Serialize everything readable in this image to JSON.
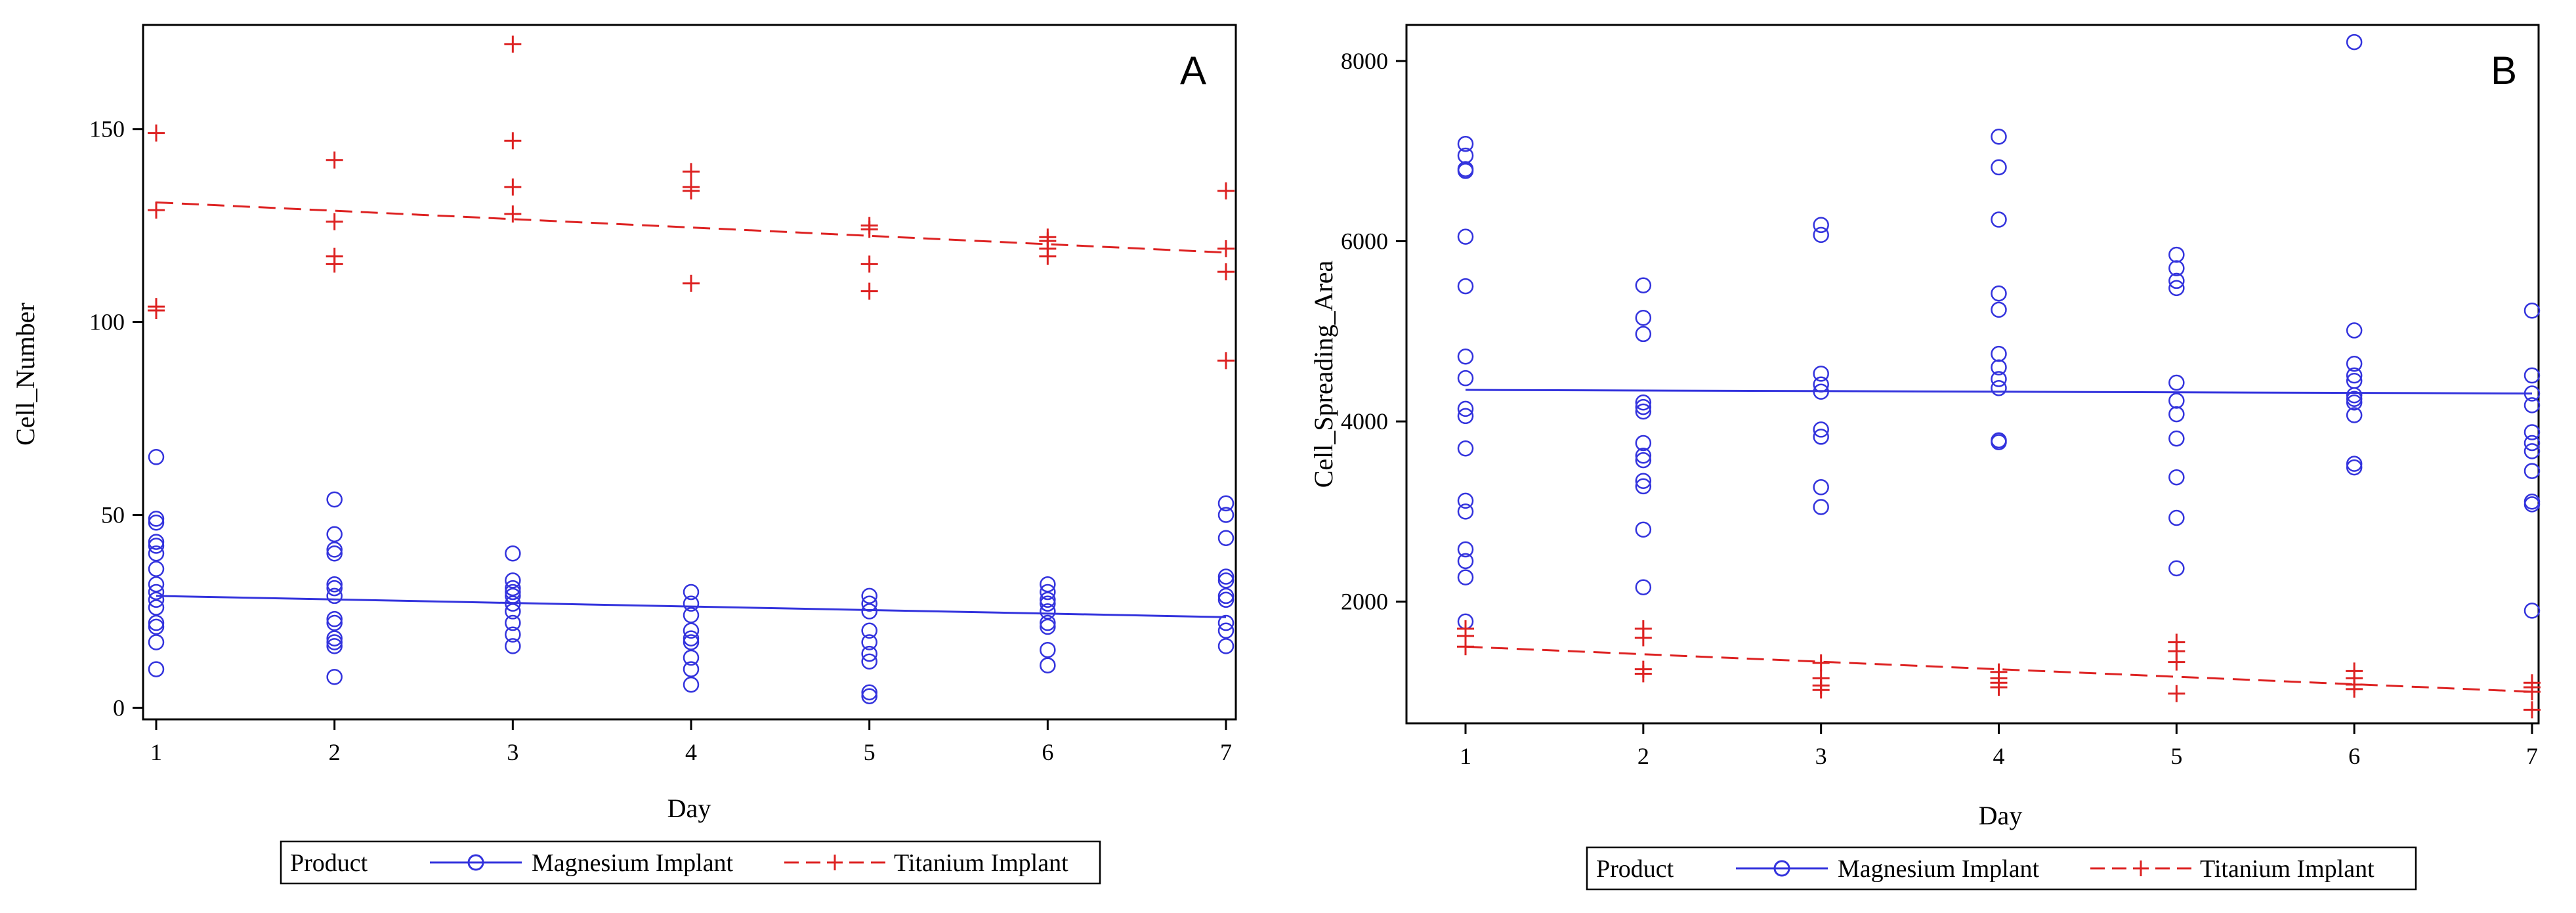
{
  "chart_data": [
    {
      "panel": "A",
      "type": "scatter",
      "xlabel": "Day",
      "ylabel": "Cell_Number",
      "xlim": [
        1,
        7
      ],
      "ylim": [
        -3,
        177
      ],
      "xticks": [
        1,
        2,
        3,
        4,
        5,
        6,
        7
      ],
      "yticks": [
        0,
        50,
        100,
        150
      ],
      "grid": false,
      "legend": {
        "title": "Product",
        "placement": "bottom",
        "entries": [
          "Magnesium Implant",
          "Titanium Implant"
        ]
      },
      "series": [
        {
          "name": "Magnesium Implant",
          "color": "#3333dd",
          "marker": "circle",
          "fit_line": "solid",
          "fit": [
            [
              1,
              29
            ],
            [
              7,
              23.5
            ]
          ],
          "points": [
            [
              1,
              65
            ],
            [
              1,
              49
            ],
            [
              1,
              48
            ],
            [
              1,
              43
            ],
            [
              1,
              42
            ],
            [
              1,
              40
            ],
            [
              1,
              36
            ],
            [
              1,
              32
            ],
            [
              1,
              30
            ],
            [
              1,
              28
            ],
            [
              1,
              26
            ],
            [
              1,
              22
            ],
            [
              1,
              21
            ],
            [
              1,
              17
            ],
            [
              1,
              10
            ],
            [
              2,
              54
            ],
            [
              2,
              45
            ],
            [
              2,
              41
            ],
            [
              2,
              40
            ],
            [
              2,
              32
            ],
            [
              2,
              31
            ],
            [
              2,
              29
            ],
            [
              2,
              23
            ],
            [
              2,
              22
            ],
            [
              2,
              18
            ],
            [
              2,
              17
            ],
            [
              2,
              16
            ],
            [
              2,
              8
            ],
            [
              3,
              40
            ],
            [
              3,
              33
            ],
            [
              3,
              31
            ],
            [
              3,
              30
            ],
            [
              3,
              29
            ],
            [
              3,
              27
            ],
            [
              3,
              25
            ],
            [
              3,
              22
            ],
            [
              3,
              19
            ],
            [
              3,
              16
            ],
            [
              4,
              30
            ],
            [
              4,
              27
            ],
            [
              4,
              24
            ],
            [
              4,
              20
            ],
            [
              4,
              18
            ],
            [
              4,
              17
            ],
            [
              4,
              13
            ],
            [
              4,
              10
            ],
            [
              4,
              6
            ],
            [
              5,
              29
            ],
            [
              5,
              27
            ],
            [
              5,
              25
            ],
            [
              5,
              20
            ],
            [
              5,
              17
            ],
            [
              5,
              14
            ],
            [
              5,
              12
            ],
            [
              5,
              4
            ],
            [
              5,
              3
            ],
            [
              6,
              32
            ],
            [
              6,
              30
            ],
            [
              6,
              28
            ],
            [
              6,
              27
            ],
            [
              6,
              25
            ],
            [
              6,
              22
            ],
            [
              6,
              21
            ],
            [
              6,
              15
            ],
            [
              6,
              11
            ],
            [
              7,
              53
            ],
            [
              7,
              50
            ],
            [
              7,
              44
            ],
            [
              7,
              34
            ],
            [
              7,
              33
            ],
            [
              7,
              29
            ],
            [
              7,
              28
            ],
            [
              7,
              22
            ],
            [
              7,
              20
            ],
            [
              7,
              16
            ]
          ]
        },
        {
          "name": "Titanium Implant",
          "color": "#dd2222",
          "marker": "plus",
          "fit_line": "dashed",
          "fit": [
            [
              1,
              131
            ],
            [
              7,
              118
            ]
          ],
          "points": [
            [
              1,
              149
            ],
            [
              1,
              129
            ],
            [
              1,
              104
            ],
            [
              1,
              103
            ],
            [
              2,
              142
            ],
            [
              2,
              126
            ],
            [
              2,
              117
            ],
            [
              2,
              115
            ],
            [
              3,
              172
            ],
            [
              3,
              147
            ],
            [
              3,
              135
            ],
            [
              3,
              128
            ],
            [
              4,
              139
            ],
            [
              4,
              135
            ],
            [
              4,
              134
            ],
            [
              4,
              110
            ],
            [
              5,
              125
            ],
            [
              5,
              124
            ],
            [
              5,
              115
            ],
            [
              5,
              108
            ],
            [
              6,
              122
            ],
            [
              6,
              121
            ],
            [
              6,
              119
            ],
            [
              6,
              117
            ],
            [
              7,
              134
            ],
            [
              7,
              119
            ],
            [
              7,
              113
            ],
            [
              7,
              90
            ]
          ]
        }
      ]
    },
    {
      "panel": "B",
      "type": "scatter",
      "xlabel": "Day",
      "ylabel": "Cell_Spreading_Area",
      "xlim": [
        1,
        7
      ],
      "ylim": [
        650,
        8400
      ],
      "xticks": [
        1,
        2,
        3,
        4,
        5,
        6,
        7
      ],
      "yticks": [
        2000,
        4000,
        6000,
        8000
      ],
      "grid": false,
      "legend": {
        "title": "Product",
        "placement": "bottom",
        "entries": [
          "Magnesium Implant",
          "Titanium Implant"
        ]
      },
      "series": [
        {
          "name": "Magnesium Implant",
          "color": "#3333dd",
          "marker": "circle",
          "fit_line": "solid",
          "fit": [
            [
              1,
              4350
            ],
            [
              7,
              4310
            ]
          ],
          "points": [
            [
              1,
              7080
            ],
            [
              1,
              6950
            ],
            [
              1,
              6800
            ],
            [
              1,
              6780
            ],
            [
              1,
              6050
            ],
            [
              1,
              5500
            ],
            [
              1,
              4720
            ],
            [
              1,
              4480
            ],
            [
              1,
              4140
            ],
            [
              1,
              4060
            ],
            [
              1,
              3700
            ],
            [
              1,
              3120
            ],
            [
              1,
              3000
            ],
            [
              1,
              2580
            ],
            [
              1,
              2450
            ],
            [
              1,
              2270
            ],
            [
              1,
              1780
            ],
            [
              2,
              5510
            ],
            [
              2,
              5150
            ],
            [
              2,
              4970
            ],
            [
              2,
              4210
            ],
            [
              2,
              4160
            ],
            [
              2,
              4110
            ],
            [
              2,
              3760
            ],
            [
              2,
              3620
            ],
            [
              2,
              3570
            ],
            [
              2,
              3340
            ],
            [
              2,
              3280
            ],
            [
              2,
              2800
            ],
            [
              2,
              2160
            ],
            [
              3,
              6180
            ],
            [
              3,
              6070
            ],
            [
              3,
              4530
            ],
            [
              3,
              4410
            ],
            [
              3,
              4330
            ],
            [
              3,
              3910
            ],
            [
              3,
              3830
            ],
            [
              3,
              3270
            ],
            [
              3,
              3050
            ],
            [
              4,
              7160
            ],
            [
              4,
              6820
            ],
            [
              4,
              6240
            ],
            [
              4,
              5420
            ],
            [
              4,
              5240
            ],
            [
              4,
              4750
            ],
            [
              4,
              4600
            ],
            [
              4,
              4470
            ],
            [
              4,
              4370
            ],
            [
              4,
              3790
            ],
            [
              4,
              3770
            ],
            [
              5,
              5850
            ],
            [
              5,
              5700
            ],
            [
              5,
              5560
            ],
            [
              5,
              5480
            ],
            [
              5,
              4430
            ],
            [
              5,
              4230
            ],
            [
              5,
              4080
            ],
            [
              5,
              3810
            ],
            [
              5,
              3380
            ],
            [
              5,
              2930
            ],
            [
              5,
              2370
            ],
            [
              6,
              8210
            ],
            [
              6,
              5010
            ],
            [
              6,
              4640
            ],
            [
              6,
              4510
            ],
            [
              6,
              4450
            ],
            [
              6,
              4290
            ],
            [
              6,
              4250
            ],
            [
              6,
              4210
            ],
            [
              6,
              4070
            ],
            [
              6,
              3530
            ],
            [
              6,
              3490
            ],
            [
              7,
              5230
            ],
            [
              7,
              4510
            ],
            [
              7,
              4310
            ],
            [
              7,
              4180
            ],
            [
              7,
              3880
            ],
            [
              7,
              3760
            ],
            [
              7,
              3670
            ],
            [
              7,
              3450
            ],
            [
              7,
              3110
            ],
            [
              7,
              3080
            ],
            [
              7,
              1900
            ]
          ]
        },
        {
          "name": "Titanium Implant",
          "color": "#dd2222",
          "marker": "plus",
          "fit_line": "dashed",
          "fit": [
            [
              1,
              1500
            ],
            [
              7,
              1000
            ]
          ],
          "points": [
            [
              1,
              1700
            ],
            [
              1,
              1620
            ],
            [
              1,
              1500
            ],
            [
              2,
              1700
            ],
            [
              2,
              1600
            ],
            [
              2,
              1250
            ],
            [
              2,
              1200
            ],
            [
              3,
              1320
            ],
            [
              3,
              1150
            ],
            [
              3,
              1070
            ],
            [
              3,
              1020
            ],
            [
              4,
              1220
            ],
            [
              4,
              1150
            ],
            [
              4,
              1100
            ],
            [
              4,
              1050
            ],
            [
              5,
              1550
            ],
            [
              5,
              1450
            ],
            [
              5,
              1330
            ],
            [
              5,
              980
            ],
            [
              6,
              1230
            ],
            [
              6,
              1150
            ],
            [
              6,
              1080
            ],
            [
              6,
              1030
            ],
            [
              7,
              1100
            ],
            [
              7,
              1050
            ],
            [
              7,
              1000
            ],
            [
              7,
              800
            ]
          ]
        }
      ]
    }
  ]
}
